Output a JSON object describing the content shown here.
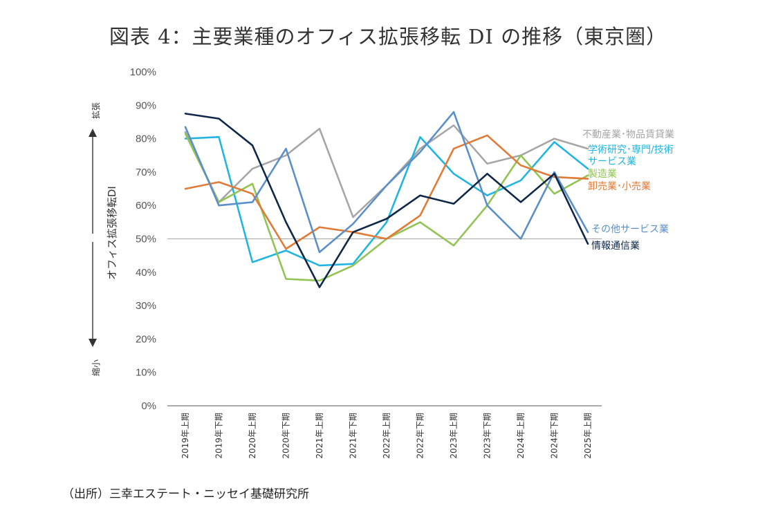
{
  "title": "図表 4：主要業種のオフィス拡張移転 DI の推移（東京圏）",
  "source": "（出所）三幸エステート・ニッセイ基礎研究所",
  "chart_data": {
    "type": "line",
    "title": "図表 4：主要業種のオフィス拡張移転 DI の推移（東京圏）",
    "ylabel": "オフィス拡張移転DI",
    "ylim": [
      0,
      100
    ],
    "yticks": [
      "0%",
      "10%",
      "20%",
      "30%",
      "40%",
      "50%",
      "60%",
      "70%",
      "80%",
      "90%",
      "100%"
    ],
    "reference_line": 50,
    "side_labels": {
      "top": "拡張",
      "bottom": "縮小"
    },
    "categories": [
      "2019年上期",
      "2019年下期",
      "2020年上期",
      "2020年下期",
      "2021年上期",
      "2021年下期",
      "2022年上期",
      "2022年下期",
      "2023年上期",
      "2023年下期",
      "2024年上期",
      "2024年下期",
      "2025年上期"
    ],
    "grid": false,
    "series": [
      {
        "name": "不動産業･物品賃貸業",
        "color": "#a6a6a6",
        "values": [
          82,
          61,
          71,
          75,
          83,
          56.5,
          66,
          77,
          84,
          72.5,
          75,
          80,
          77
        ]
      },
      {
        "name": "学術研究･専門/技術サービス業",
        "color": "#1fb5e0",
        "values": [
          80,
          80.5,
          43,
          46.5,
          42,
          42.5,
          55,
          80.5,
          69.5,
          63,
          67.5,
          79,
          71
        ]
      },
      {
        "name": "製造業",
        "color": "#92c353",
        "values": [
          81.5,
          61,
          66.5,
          38,
          37.5,
          42,
          50,
          55,
          48,
          60,
          75,
          63.5,
          69
        ]
      },
      {
        "name": "卸売業･小売業",
        "color": "#e07a36",
        "values": [
          65,
          67,
          63.5,
          47,
          53.5,
          52,
          50,
          57,
          77,
          81,
          72,
          68.5,
          68
        ]
      },
      {
        "name": "その他サービス業",
        "color": "#5b8fc9",
        "values": [
          83.5,
          60,
          61,
          77,
          46,
          54.5,
          66,
          76,
          88,
          60,
          50,
          70,
          52
        ]
      },
      {
        "name": "情報通信業",
        "color": "#0f2748",
        "values": [
          87.5,
          86,
          78,
          55,
          35.5,
          52,
          56,
          63,
          60.5,
          69.5,
          61,
          69.5,
          48.5
        ]
      }
    ],
    "label_lines": [
      {
        "series": 0,
        "lines": [
          "不動産業･物品賃貸業"
        ]
      },
      {
        "series": 1,
        "lines": [
          "学術研究･専門/技術",
          "サービス業"
        ]
      },
      {
        "series": 2,
        "lines": [
          "製造業"
        ]
      },
      {
        "series": 3,
        "lines": [
          "卸売業･小売業"
        ]
      },
      {
        "series": 4,
        "lines": [
          "その他サービス業"
        ]
      },
      {
        "series": 5,
        "lines": [
          "情報通信業"
        ]
      }
    ]
  }
}
